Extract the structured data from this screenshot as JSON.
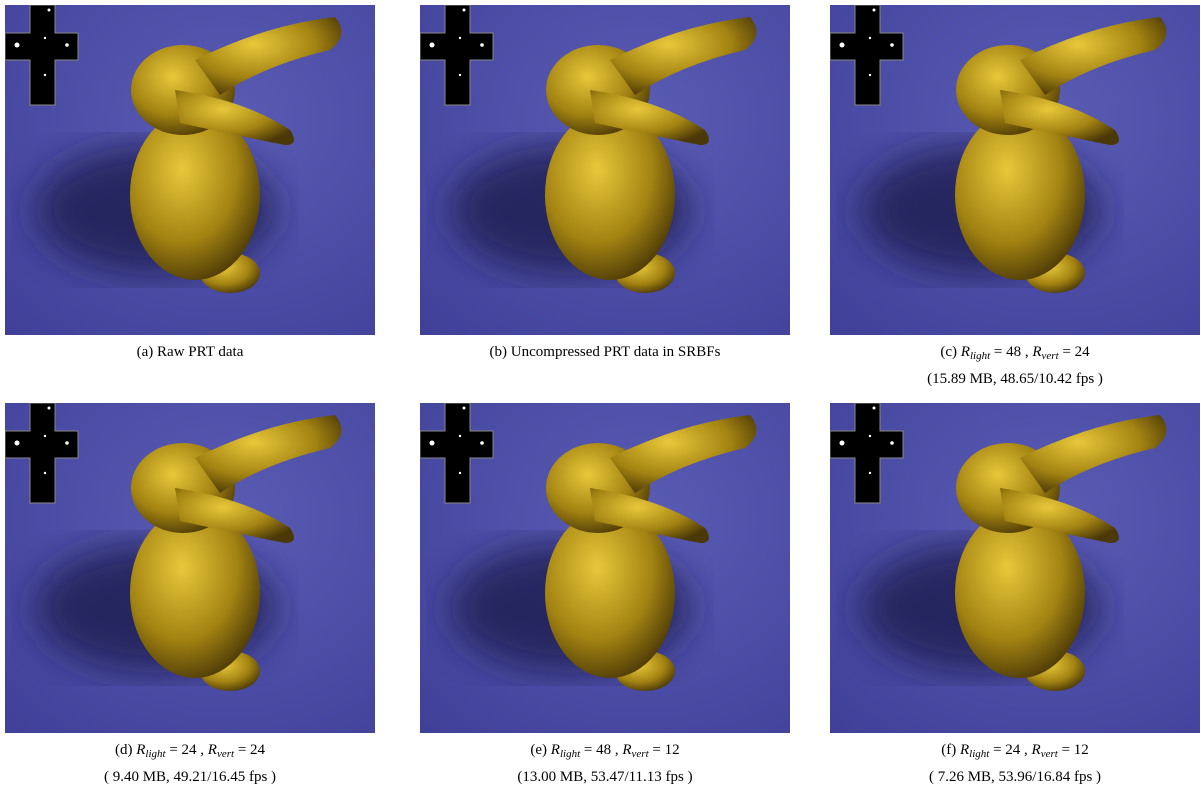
{
  "panels": [
    {
      "caption": [
        {
          "text": "(a) Raw PRT data"
        }
      ]
    },
    {
      "caption": [
        {
          "text": "(b) Uncompressed PRT data in SRBFs"
        }
      ]
    },
    {
      "caption": [
        {
          "text": "(c) "
        },
        {
          "text": "R",
          "style": "math"
        },
        {
          "text": "light",
          "style": "sub"
        },
        {
          "text": " = 48 , "
        },
        {
          "text": "R",
          "style": "math"
        },
        {
          "text": "vert",
          "style": "sub"
        },
        {
          "text": " = 24"
        }
      ],
      "details": "(15.89 MB, 48.65/10.42 fps )"
    },
    {
      "caption": [
        {
          "text": "(d) "
        },
        {
          "text": "R",
          "style": "math"
        },
        {
          "text": "light",
          "style": "sub"
        },
        {
          "text": " = 24 , "
        },
        {
          "text": "R",
          "style": "math"
        },
        {
          "text": "vert",
          "style": "sub"
        },
        {
          "text": " = 24"
        }
      ],
      "details": "( 9.40 MB, 49.21/16.45 fps )"
    },
    {
      "caption": [
        {
          "text": "(e) "
        },
        {
          "text": "R",
          "style": "math"
        },
        {
          "text": "light",
          "style": "sub"
        },
        {
          "text": " = 48 , "
        },
        {
          "text": "R",
          "style": "math"
        },
        {
          "text": "vert",
          "style": "sub"
        },
        {
          "text": " = 12"
        }
      ],
      "details": "(13.00 MB, 53.47/11.13 fps )"
    },
    {
      "caption": [
        {
          "text": "(f) "
        },
        {
          "text": "R",
          "style": "math"
        },
        {
          "text": "light",
          "style": "sub"
        },
        {
          "text": " = 24 , "
        },
        {
          "text": "R",
          "style": "math"
        },
        {
          "text": "vert",
          "style": "sub"
        },
        {
          "text": " = 12"
        }
      ],
      "details": "( 7.26 MB, 53.96/16.84 fps )"
    }
  ]
}
